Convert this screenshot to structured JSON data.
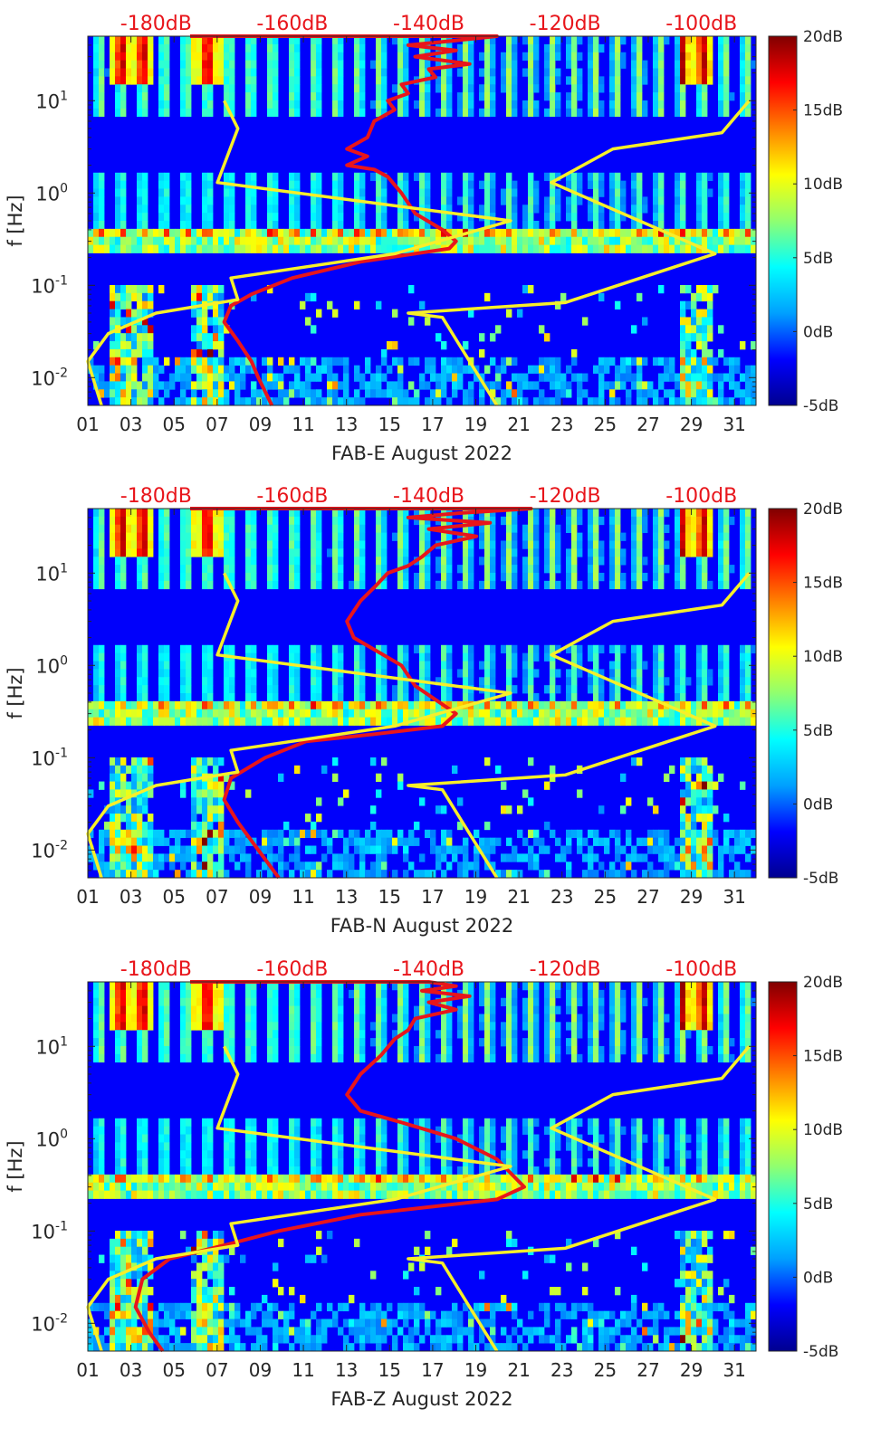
{
  "colormap": {
    "stops": [
      "#00008f",
      "#0000ff",
      "#00a0ff",
      "#00ffff",
      "#90ff70",
      "#ffff00",
      "#ff8000",
      "#ff0000",
      "#800000"
    ],
    "ticks": [
      "20dB",
      "15dB",
      "10dB",
      "5dB",
      "0dB",
      "-5dB"
    ],
    "min_db": -5,
    "max_db": 20
  },
  "colors": {
    "psd_curve": "#e8151b",
    "noise_model": "#f7ef2a",
    "top_axis_text": "#e8151b"
  },
  "chart_data": [
    {
      "type": "heatmap",
      "xlabel": "FAB-E August 2022",
      "ylabel": "f [Hz]",
      "x_ticks": [
        "01",
        "03",
        "05",
        "07",
        "09",
        "11",
        "13",
        "15",
        "17",
        "19",
        "21",
        "23",
        "25",
        "27",
        "29",
        "31"
      ],
      "x_range": [
        1,
        32
      ],
      "y_scale": "log",
      "y_range_hz": [
        0.005,
        50
      ],
      "y_tick_labels": [
        {
          "base": "10",
          "exp": "1"
        },
        {
          "base": "10",
          "exp": "0"
        },
        {
          "base": "10",
          "exp": "-1"
        },
        {
          "base": "10",
          "exp": "-2"
        }
      ],
      "top_axis_ticks": [
        "-180dB",
        "-160dB",
        "-140dB",
        "-120dB",
        "-100dB"
      ],
      "top_axis_range_db": [
        -190,
        -92
      ],
      "colorbar_range_db": [
        -5,
        20
      ],
      "series": [
        {
          "style": "red",
          "points_db_hz": [
            [
              -175,
              50
            ],
            [
              -140,
              50
            ],
            [
              -130,
              50
            ],
            [
              -136,
              45
            ],
            [
              -143,
              40
            ],
            [
              -136,
              35
            ],
            [
              -142,
              30
            ],
            [
              -134,
              25
            ],
            [
              -140,
              22
            ],
            [
              -139,
              18
            ],
            [
              -144,
              15
            ],
            [
              -143,
              12
            ],
            [
              -146,
              10
            ],
            [
              -145,
              8
            ],
            [
              -148,
              6
            ],
            [
              -149,
              4
            ],
            [
              -152,
              3
            ],
            [
              -149,
              2.5
            ],
            [
              -152,
              2
            ],
            [
              -148,
              1.8
            ],
            [
              -146,
              1.5
            ],
            [
              -144,
              1
            ],
            [
              -142,
              0.6
            ],
            [
              -138,
              0.4
            ],
            [
              -136,
              0.3
            ],
            [
              -137,
              0.25
            ],
            [
              -150,
              0.18
            ],
            [
              -160,
              0.12
            ],
            [
              -166,
              0.08
            ],
            [
              -169,
              0.06
            ],
            [
              -170,
              0.04
            ],
            [
              -168,
              0.025
            ],
            [
              -166,
              0.015
            ],
            [
              -165,
              0.01
            ],
            [
              -163,
              0.005
            ]
          ]
        },
        {
          "style": "yellow",
          "points_db_hz": [
            [
              -170,
              10
            ],
            [
              -168,
              5
            ],
            [
              -171,
              1.3
            ],
            [
              -128,
              0.5
            ],
            [
              -145,
              0.22
            ],
            [
              -169,
              0.12
            ],
            [
              -168,
              0.07
            ],
            [
              -180,
              0.05
            ],
            [
              -187,
              0.03
            ],
            [
              -190,
              0.015
            ],
            [
              -188,
              0.005
            ]
          ]
        },
        {
          "style": "yellow",
          "points_db_hz": [
            [
              -93,
              10
            ],
            [
              -97,
              4.5
            ],
            [
              -113,
              3
            ],
            [
              -122,
              1.3
            ],
            [
              -98,
              0.22
            ],
            [
              -120,
              0.065
            ],
            [
              -143,
              0.05
            ],
            [
              -138,
              0.045
            ],
            [
              -130,
              0.005
            ]
          ]
        }
      ]
    },
    {
      "type": "heatmap",
      "xlabel": "FAB-N August 2022",
      "ylabel": "f [Hz]",
      "x_ticks": [
        "01",
        "03",
        "05",
        "07",
        "09",
        "11",
        "13",
        "15",
        "17",
        "19",
        "21",
        "23",
        "25",
        "27",
        "29",
        "31"
      ],
      "x_range": [
        1,
        32
      ],
      "y_scale": "log",
      "y_range_hz": [
        0.005,
        50
      ],
      "y_tick_labels": [
        {
          "base": "10",
          "exp": "1"
        },
        {
          "base": "10",
          "exp": "0"
        },
        {
          "base": "10",
          "exp": "-1"
        },
        {
          "base": "10",
          "exp": "-2"
        }
      ],
      "top_axis_ticks": [
        "-180dB",
        "-160dB",
        "-140dB",
        "-120dB",
        "-100dB"
      ],
      "top_axis_range_db": [
        -190,
        -92
      ],
      "colorbar_range_db": [
        -5,
        20
      ],
      "series": [
        {
          "style": "red",
          "points_db_hz": [
            [
              -175,
              50
            ],
            [
              -125,
              50
            ],
            [
              -135,
              45
            ],
            [
              -143,
              40
            ],
            [
              -131,
              35
            ],
            [
              -140,
              30
            ],
            [
              -133,
              25
            ],
            [
              -139,
              20
            ],
            [
              -141,
              15
            ],
            [
              -143,
              12
            ],
            [
              -146,
              10
            ],
            [
              -148,
              7
            ],
            [
              -150,
              5
            ],
            [
              -152,
              3
            ],
            [
              -151,
              2
            ],
            [
              -144,
              1
            ],
            [
              -142,
              0.6
            ],
            [
              -136,
              0.3
            ],
            [
              -138,
              0.22
            ],
            [
              -148,
              0.18
            ],
            [
              -158,
              0.15
            ],
            [
              -164,
              0.1
            ],
            [
              -169,
              0.06
            ],
            [
              -170,
              0.035
            ],
            [
              -168,
              0.02
            ],
            [
              -165,
              0.01
            ],
            [
              -162,
              0.005
            ]
          ]
        },
        {
          "style": "yellow",
          "points_db_hz": [
            [
              -170,
              10
            ],
            [
              -168,
              5
            ],
            [
              -171,
              1.3
            ],
            [
              -128,
              0.5
            ],
            [
              -145,
              0.22
            ],
            [
              -169,
              0.12
            ],
            [
              -168,
              0.07
            ],
            [
              -180,
              0.05
            ],
            [
              -187,
              0.03
            ],
            [
              -190,
              0.015
            ],
            [
              -188,
              0.005
            ]
          ]
        },
        {
          "style": "yellow",
          "points_db_hz": [
            [
              -93,
              10
            ],
            [
              -97,
              4.5
            ],
            [
              -113,
              3
            ],
            [
              -122,
              1.3
            ],
            [
              -98,
              0.22
            ],
            [
              -120,
              0.065
            ],
            [
              -143,
              0.05
            ],
            [
              -138,
              0.045
            ],
            [
              -130,
              0.005
            ]
          ]
        }
      ]
    },
    {
      "type": "heatmap",
      "xlabel": "FAB-Z August 2022",
      "ylabel": "f [Hz]",
      "x_ticks": [
        "01",
        "03",
        "05",
        "07",
        "09",
        "11",
        "13",
        "15",
        "17",
        "19",
        "21",
        "23",
        "25",
        "27",
        "29",
        "31"
      ],
      "x_range": [
        1,
        32
      ],
      "y_scale": "log",
      "y_range_hz": [
        0.005,
        50
      ],
      "y_tick_labels": [
        {
          "base": "10",
          "exp": "1"
        },
        {
          "base": "10",
          "exp": "0"
        },
        {
          "base": "10",
          "exp": "-1"
        },
        {
          "base": "10",
          "exp": "-2"
        }
      ],
      "top_axis_ticks": [
        "-180dB",
        "-160dB",
        "-140dB",
        "-120dB",
        "-100dB"
      ],
      "top_axis_range_db": [
        -190,
        -92
      ],
      "colorbar_range_db": [
        -5,
        20
      ],
      "series": [
        {
          "style": "red",
          "points_db_hz": [
            [
              -175,
              50
            ],
            [
              -140,
              50
            ],
            [
              -136,
              45
            ],
            [
              -141,
              40
            ],
            [
              -134,
              35
            ],
            [
              -140,
              30
            ],
            [
              -136,
              25
            ],
            [
              -142,
              20
            ],
            [
              -143,
              15
            ],
            [
              -145,
              12
            ],
            [
              -147,
              8
            ],
            [
              -150,
              5
            ],
            [
              -152,
              3
            ],
            [
              -150,
              2
            ],
            [
              -144,
              1.5
            ],
            [
              -136,
              1
            ],
            [
              -130,
              0.6
            ],
            [
              -126,
              0.3
            ],
            [
              -130,
              0.22
            ],
            [
              -150,
              0.15
            ],
            [
              -162,
              0.1
            ],
            [
              -170,
              0.07
            ],
            [
              -178,
              0.05
            ],
            [
              -182,
              0.03
            ],
            [
              -183,
              0.015
            ],
            [
              -181,
              0.008
            ],
            [
              -179,
              0.005
            ]
          ]
        },
        {
          "style": "yellow",
          "points_db_hz": [
            [
              -170,
              10
            ],
            [
              -168,
              5
            ],
            [
              -171,
              1.3
            ],
            [
              -128,
              0.5
            ],
            [
              -145,
              0.22
            ],
            [
              -169,
              0.12
            ],
            [
              -168,
              0.07
            ],
            [
              -180,
              0.05
            ],
            [
              -187,
              0.03
            ],
            [
              -190,
              0.015
            ],
            [
              -188,
              0.005
            ]
          ]
        },
        {
          "style": "yellow",
          "points_db_hz": [
            [
              -93,
              10
            ],
            [
              -97,
              4.5
            ],
            [
              -113,
              3
            ],
            [
              -122,
              1.3
            ],
            [
              -98,
              0.22
            ],
            [
              -120,
              0.065
            ],
            [
              -143,
              0.05
            ],
            [
              -138,
              0.045
            ],
            [
              -130,
              0.005
            ]
          ]
        }
      ]
    }
  ]
}
